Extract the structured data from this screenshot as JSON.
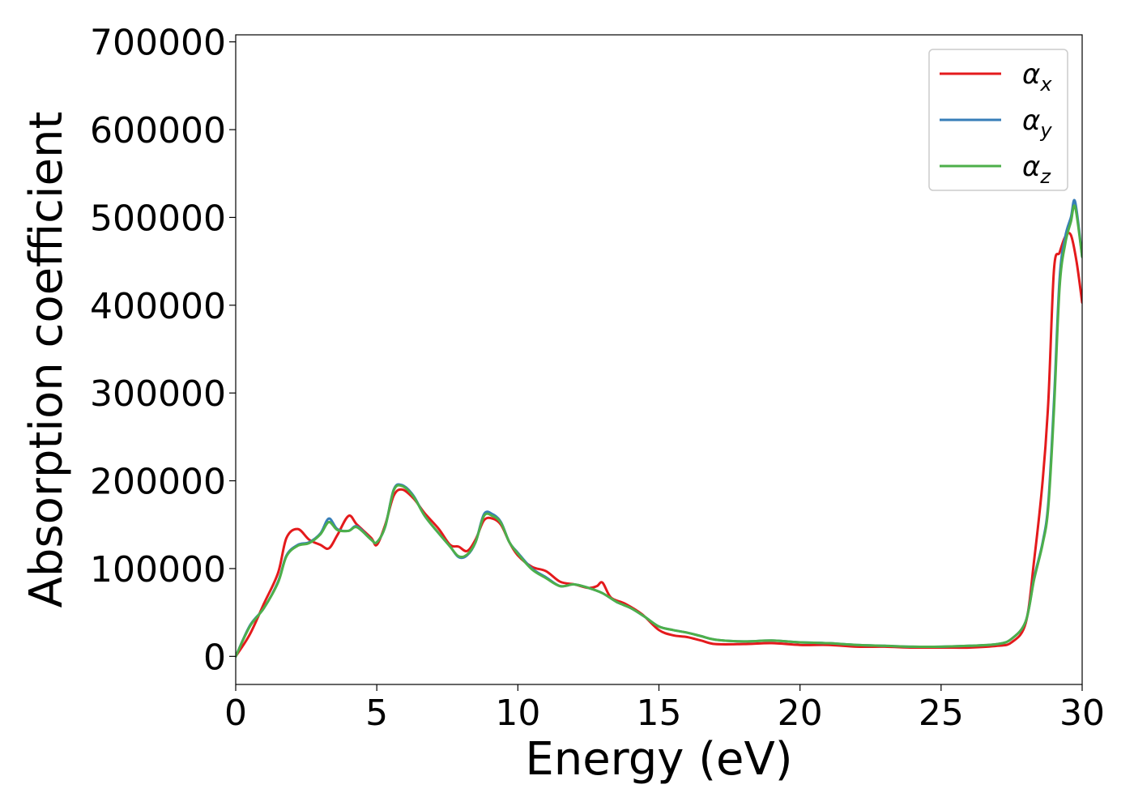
{
  "chart_data": {
    "type": "line",
    "xlabel": "Energy (eV)",
    "ylabel": "Absorption coefficient",
    "xlim": [
      0,
      30
    ],
    "ylim": [
      -32000,
      708000
    ],
    "xticks": [
      0,
      5,
      10,
      15,
      20,
      25,
      30
    ],
    "xtick_labels": [
      "0",
      "5",
      "10",
      "15",
      "20",
      "25",
      "30"
    ],
    "yticks": [
      0,
      100000,
      200000,
      300000,
      400000,
      500000,
      600000,
      700000
    ],
    "ytick_labels": [
      "0",
      "100000",
      "200000",
      "300000",
      "400000",
      "500000",
      "600000",
      "700000"
    ],
    "grid": false,
    "legend_position": "top-right",
    "series": [
      {
        "name": "α_x",
        "legend_base": "α",
        "legend_sub": "x",
        "color": "#e41a1c",
        "x": [
          0,
          0.5,
          1,
          1.5,
          1.8,
          2.2,
          2.6,
          3.0,
          3.3,
          3.6,
          4.0,
          4.3,
          4.8,
          5.0,
          5.3,
          5.6,
          5.9,
          6.3,
          6.7,
          7.2,
          7.6,
          7.9,
          8.2,
          8.5,
          8.8,
          9.1,
          9.4,
          9.7,
          10.0,
          10.5,
          11.0,
          11.5,
          12.0,
          12.5,
          12.8,
          13.0,
          13.3,
          13.8,
          14.4,
          15.0,
          15.5,
          16.0,
          16.5,
          17.0,
          18.0,
          19.0,
          20.0,
          21.0,
          22.0,
          23.0,
          24.0,
          25.0,
          26.0,
          27.0,
          27.5,
          28.0,
          28.3,
          28.6,
          28.8,
          29.0,
          29.2,
          29.4,
          29.6,
          29.8,
          30.0
        ],
        "y": [
          0,
          25000,
          60000,
          95000,
          135000,
          145000,
          133000,
          127000,
          123000,
          138000,
          160000,
          150000,
          135000,
          127000,
          150000,
          183000,
          190000,
          180000,
          163000,
          145000,
          127000,
          125000,
          120000,
          133000,
          155000,
          157000,
          150000,
          130000,
          115000,
          102000,
          97000,
          85000,
          82000,
          78000,
          80000,
          84000,
          67000,
          60000,
          48000,
          30000,
          24000,
          22000,
          18000,
          14000,
          14000,
          15000,
          13000,
          13000,
          11000,
          11000,
          10000,
          10000,
          10000,
          12000,
          16000,
          38000,
          110000,
          200000,
          290000,
          440000,
          460000,
          478000,
          480000,
          450000,
          403000
        ]
      },
      {
        "name": "α_y",
        "legend_base": "α",
        "legend_sub": "y",
        "color": "#377eb8",
        "x": [
          0,
          0.5,
          1,
          1.5,
          1.8,
          2.2,
          2.6,
          3.0,
          3.3,
          3.6,
          4.0,
          4.3,
          4.8,
          5.0,
          5.3,
          5.6,
          5.9,
          6.3,
          6.7,
          7.2,
          7.6,
          7.9,
          8.2,
          8.5,
          8.8,
          9.1,
          9.4,
          9.7,
          10.0,
          10.5,
          11.0,
          11.5,
          12.0,
          12.5,
          13.0,
          13.5,
          14.0,
          14.5,
          15.0,
          15.5,
          16.0,
          16.5,
          17.0,
          18.0,
          19.0,
          20.0,
          21.0,
          22.0,
          23.0,
          24.0,
          25.0,
          26.0,
          27.0,
          27.5,
          28.0,
          28.3,
          28.6,
          28.8,
          29.0,
          29.2,
          29.4,
          29.6,
          29.75,
          30.0
        ],
        "y": [
          0,
          35000,
          55000,
          85000,
          115000,
          127000,
          130000,
          140000,
          157000,
          145000,
          143000,
          148000,
          133000,
          130000,
          148000,
          190000,
          195000,
          183000,
          160000,
          140000,
          125000,
          113000,
          115000,
          130000,
          162000,
          162000,
          153000,
          130000,
          118000,
          100000,
          90000,
          80000,
          82000,
          78000,
          72000,
          62000,
          55000,
          45000,
          34000,
          30000,
          27000,
          23000,
          19000,
          17000,
          18000,
          16000,
          15000,
          13000,
          12000,
          11000,
          11000,
          12000,
          14000,
          20000,
          40000,
          90000,
          130000,
          175000,
          290000,
          430000,
          478000,
          500000,
          518000,
          455000
        ]
      },
      {
        "name": "α_z",
        "legend_base": "α",
        "legend_sub": "z",
        "color": "#4daf4a",
        "x": [
          0,
          0.5,
          1,
          1.5,
          1.8,
          2.2,
          2.6,
          3.0,
          3.3,
          3.6,
          4.0,
          4.3,
          4.8,
          5.0,
          5.3,
          5.6,
          5.9,
          6.3,
          6.7,
          7.2,
          7.6,
          7.9,
          8.2,
          8.5,
          8.8,
          9.1,
          9.4,
          9.7,
          10.0,
          10.5,
          11.0,
          11.5,
          12.0,
          12.5,
          13.0,
          13.5,
          14.0,
          14.5,
          15.0,
          15.5,
          16.0,
          16.5,
          17.0,
          18.0,
          19.0,
          20.0,
          21.0,
          22.0,
          23.0,
          24.0,
          25.0,
          26.0,
          27.0,
          27.5,
          28.0,
          28.3,
          28.6,
          28.8,
          29.0,
          29.2,
          29.4,
          29.6,
          29.75,
          30.0
        ],
        "y": [
          0,
          34000,
          55000,
          84000,
          114000,
          126000,
          129000,
          139000,
          153000,
          144000,
          143000,
          147000,
          133000,
          130000,
          148000,
          189000,
          194000,
          182000,
          160000,
          140000,
          125000,
          114000,
          116000,
          130000,
          160000,
          160000,
          152000,
          130000,
          117000,
          99000,
          89000,
          80000,
          82000,
          78000,
          72000,
          62000,
          55000,
          45000,
          34000,
          30000,
          27000,
          23000,
          19000,
          17000,
          18000,
          16000,
          15000,
          13000,
          12000,
          11000,
          11000,
          12000,
          14000,
          20000,
          40000,
          88000,
          128000,
          170000,
          280000,
          420000,
          470000,
          495000,
          512000,
          455000
        ]
      }
    ]
  }
}
